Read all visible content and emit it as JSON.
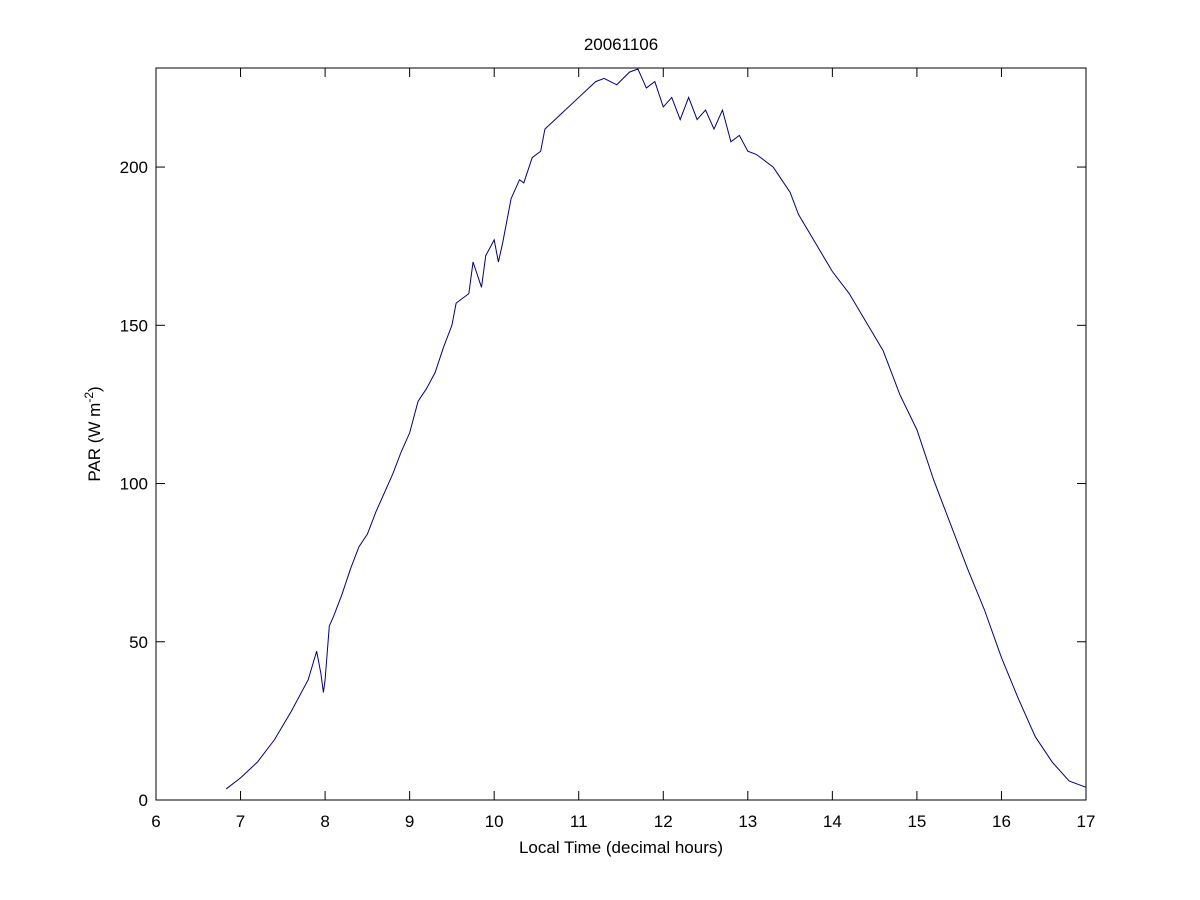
{
  "chart_data": {
    "type": "line",
    "title": "20061106",
    "xlabel": "Local Time (decimal hours)",
    "ylabel": {
      "text": "PAR (W m",
      "sup": "-2",
      "close": ")"
    },
    "x": [
      6.83,
      7.0,
      7.2,
      7.4,
      7.6,
      7.8,
      7.9,
      7.95,
      7.98,
      8.0,
      8.05,
      8.1,
      8.2,
      8.3,
      8.4,
      8.5,
      8.6,
      8.7,
      8.8,
      8.9,
      9.0,
      9.1,
      9.2,
      9.3,
      9.4,
      9.5,
      9.55,
      9.7,
      9.75,
      9.85,
      9.9,
      10.0,
      10.05,
      10.1,
      10.2,
      10.3,
      10.35,
      10.45,
      10.55,
      10.6,
      10.8,
      11.0,
      11.2,
      11.3,
      11.45,
      11.6,
      11.7,
      11.8,
      11.9,
      12.0,
      12.1,
      12.2,
      12.3,
      12.4,
      12.5,
      12.6,
      12.7,
      12.8,
      12.9,
      13.0,
      13.1,
      13.2,
      13.3,
      13.4,
      13.5,
      13.6,
      13.8,
      14.0,
      14.2,
      14.4,
      14.6,
      14.8,
      15.0,
      15.2,
      15.4,
      15.6,
      15.8,
      16.0,
      16.2,
      16.4,
      16.6,
      16.8,
      17.0
    ],
    "series": [
      {
        "color": "#00007f",
        "values": [
          3.5,
          7,
          12,
          19,
          28,
          38,
          47,
          40,
          34,
          38,
          55,
          58,
          65,
          73,
          80,
          84,
          91,
          97,
          103,
          110,
          116,
          126,
          130,
          135,
          143,
          150,
          157,
          160,
          170,
          162,
          172,
          177,
          170,
          176,
          190,
          196,
          195,
          203,
          205,
          212,
          217,
          222,
          227,
          228,
          226,
          230,
          231,
          225,
          227,
          219,
          222,
          215,
          222,
          215,
          218,
          212,
          218,
          208,
          210,
          205,
          204,
          202,
          200,
          196,
          192,
          185,
          176,
          167,
          160,
          151,
          142,
          128,
          117,
          101,
          87,
          73,
          60,
          45,
          32,
          20,
          12,
          6,
          4
        ]
      }
    ],
    "xlim": [
      6,
      17
    ],
    "xticks": [
      6,
      7,
      8,
      9,
      10,
      11,
      12,
      13,
      14,
      15,
      16,
      17
    ],
    "ylim": [
      0,
      231.3
    ],
    "yticks": [
      0,
      50,
      100,
      150,
      200
    ]
  }
}
